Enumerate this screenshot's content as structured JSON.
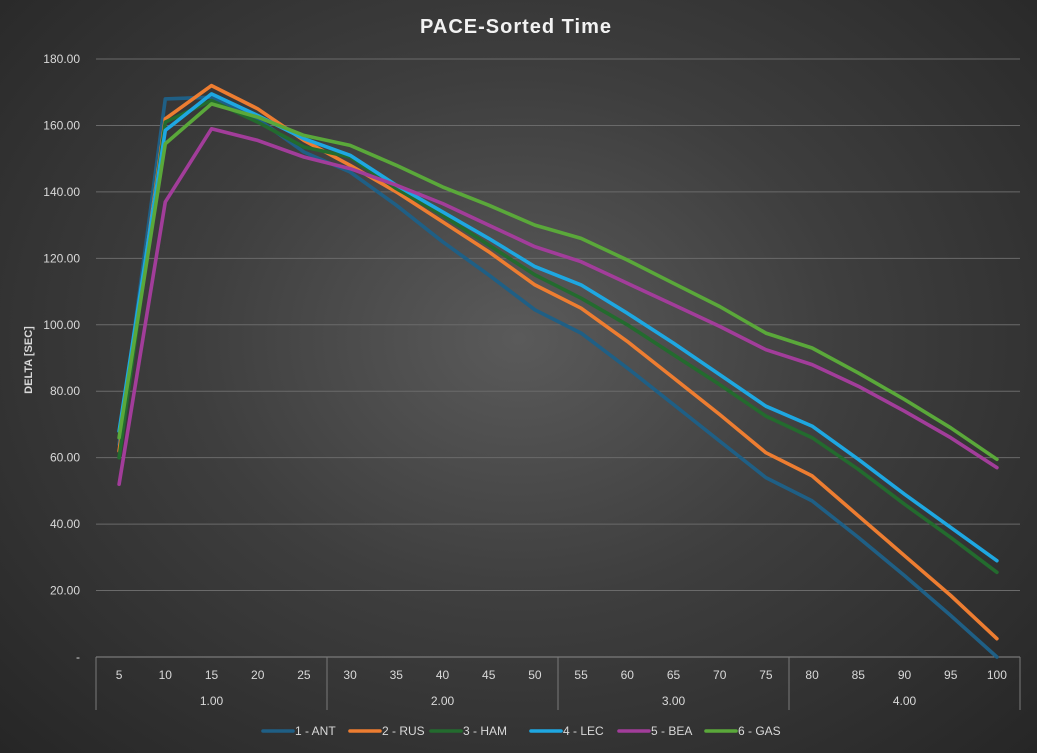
{
  "chart_data": {
    "type": "line",
    "title": "PACE-Sorted Time",
    "ylabel": "DELTA [SEC]",
    "xlabel": "",
    "ylim": [
      0,
      180
    ],
    "y_ticks": [
      "-",
      "20.00",
      "40.00",
      "60.00",
      "80.00",
      "100.00",
      "120.00",
      "140.00",
      "160.00",
      "180.00"
    ],
    "categories": [
      "5",
      "10",
      "15",
      "20",
      "25",
      "30",
      "35",
      "40",
      "45",
      "50",
      "55",
      "60",
      "65",
      "70",
      "75",
      "80",
      "85",
      "90",
      "95",
      "100"
    ],
    "groups": [
      {
        "label": "1.00",
        "start": 0,
        "end": 4
      },
      {
        "label": "2.00",
        "start": 5,
        "end": 9
      },
      {
        "label": "3.00",
        "start": 10,
        "end": 14
      },
      {
        "label": "4.00",
        "start": 15,
        "end": 19
      }
    ],
    "grid": true,
    "legend_position": "bottom",
    "series": [
      {
        "name": "1 - ANT",
        "color": "#1f5f85",
        "values": [
          64,
          168,
          168.5,
          162,
          152,
          146,
          136,
          125,
          115,
          104.5,
          97.5,
          87,
          76,
          65,
          54,
          47,
          36,
          24.5,
          12.5,
          0
        ]
      },
      {
        "name": "2 - RUS",
        "color": "#ed7d31",
        "values": [
          62,
          162,
          172,
          165,
          155.5,
          148,
          140,
          131,
          122,
          112,
          105,
          95,
          84,
          73,
          61.5,
          54.5,
          42.5,
          30.5,
          18.5,
          5.5
        ]
      },
      {
        "name": "3 - HAM",
        "color": "#236b2e",
        "values": [
          60,
          161,
          167.5,
          161,
          153.5,
          150.5,
          141,
          133,
          124,
          115,
          108,
          100,
          91,
          82,
          72.5,
          66,
          56.5,
          46,
          36,
          25.5
        ]
      },
      {
        "name": "4 - LEC",
        "color": "#1ea7e1",
        "values": [
          68,
          158.5,
          169.5,
          163,
          156,
          151,
          142,
          134,
          126,
          117.5,
          112,
          103.5,
          94.5,
          85,
          75.5,
          69.5,
          59.5,
          49,
          39,
          29
        ]
      },
      {
        "name": "5 - BEA",
        "color": "#a23d9a",
        "values": [
          52,
          137,
          159,
          155.5,
          150.5,
          147,
          142,
          136.5,
          130,
          123.5,
          119,
          112.5,
          106,
          99.5,
          92.5,
          88,
          81.5,
          74,
          66,
          57
        ]
      },
      {
        "name": "6 - GAS",
        "color": "#5aa83a",
        "values": [
          66,
          154.5,
          166.5,
          162.5,
          157,
          154,
          148,
          141.5,
          136,
          130,
          126,
          119.5,
          112.5,
          105.5,
          97.5,
          93,
          85.5,
          77.5,
          69,
          59.5
        ]
      }
    ]
  }
}
